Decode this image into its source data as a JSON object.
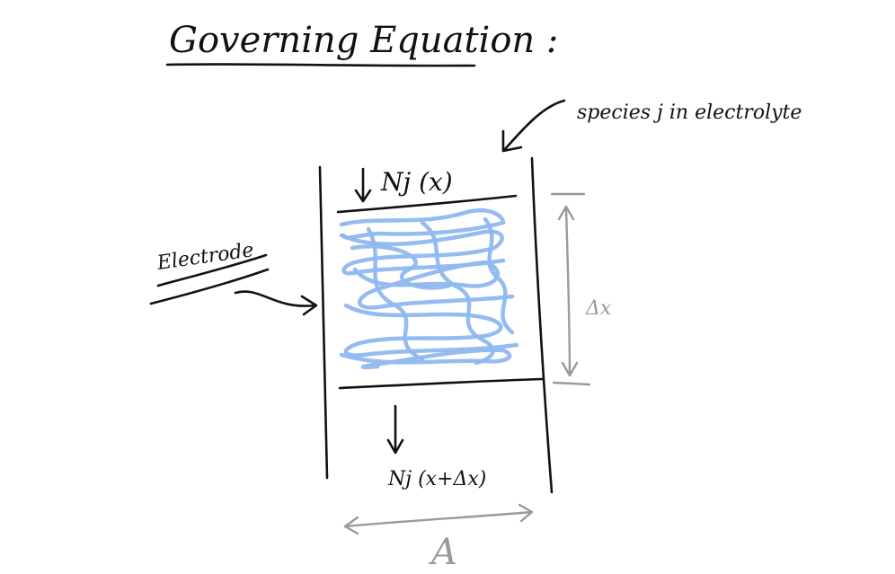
{
  "diagram": {
    "title": "Governing Equation :",
    "species_label": "species j in electrolyte",
    "electrode_label": "Electrode",
    "flux_in_label": "Nj (x)",
    "flux_out_label": "Nj (x+Δx)",
    "thickness_label": "Δx",
    "area_label": "A",
    "colors": {
      "ink": "#111111",
      "dimension": "#9a9a9a",
      "electrolyte_fill": "#8fb8ef"
    }
  }
}
